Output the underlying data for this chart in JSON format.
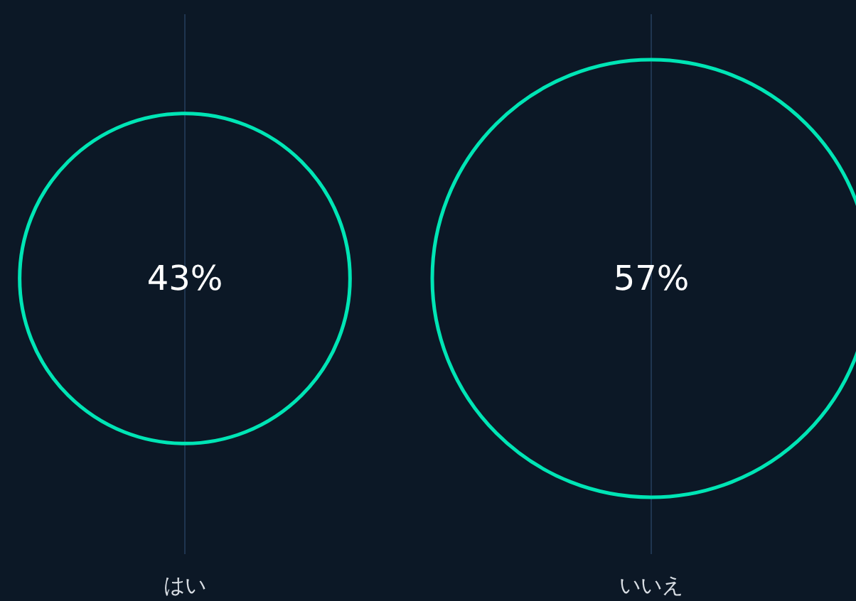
{
  "chart_data": {
    "type": "other",
    "categories": [
      "はい",
      "いいえ"
    ],
    "values": [
      43,
      57
    ],
    "value_labels": [
      "43%",
      "57%"
    ],
    "color": "#00e5b5"
  }
}
